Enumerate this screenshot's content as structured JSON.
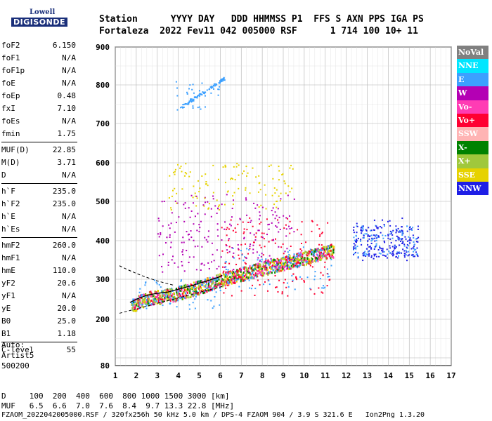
{
  "logo": {
    "line1": "Lowell",
    "line2": "DIGISONDE"
  },
  "header": {
    "row1": "Station      YYYY DAY   DDD HHMMSS P1  FFS S AXN PPS IGA PS",
    "row2": "Fortaleza  2022 Fev11 042 005000 RSF      1 714 100 10+ 11"
  },
  "params": {
    "group1": [
      {
        "k": "foF2",
        "v": "6.150"
      },
      {
        "k": "foF1",
        "v": "N/A"
      },
      {
        "k": "foF1p",
        "v": "N/A"
      },
      {
        "k": "foE",
        "v": "N/A"
      },
      {
        "k": "foEp",
        "v": "0.48"
      },
      {
        "k": "fxI",
        "v": "7.10"
      },
      {
        "k": "foEs",
        "v": "N/A"
      },
      {
        "k": "fmin",
        "v": "1.75"
      }
    ],
    "group2": [
      {
        "k": "MUF(D)",
        "v": "22.85"
      },
      {
        "k": "M(D)",
        "v": "3.71"
      },
      {
        "k": "D",
        "v": "N/A"
      }
    ],
    "group3": [
      {
        "k": "h`F",
        "v": "235.0"
      },
      {
        "k": "h`F2",
        "v": "235.0"
      },
      {
        "k": "h`E",
        "v": "N/A"
      },
      {
        "k": "h`Es",
        "v": "N/A"
      }
    ],
    "group4": [
      {
        "k": "hmF2",
        "v": "260.0"
      },
      {
        "k": "hmF1",
        "v": "N/A"
      },
      {
        "k": "hmE",
        "v": "110.0"
      },
      {
        "k": "yF2",
        "v": "20.6"
      },
      {
        "k": "yF1",
        "v": "N/A"
      },
      {
        "k": "yE",
        "v": "20.0"
      },
      {
        "k": "B0",
        "v": "25.0"
      },
      {
        "k": "B1",
        "v": "1.18"
      }
    ],
    "group5": [
      {
        "k": "C-level",
        "v": "55"
      }
    ]
  },
  "auto": {
    "l1": "Auto:",
    "l2": "Artist5",
    "l3": "500200"
  },
  "legend": [
    {
      "label": "NoVal",
      "color": "#808080"
    },
    {
      "label": "NNE",
      "color": "#00e6ff"
    },
    {
      "label": "E",
      "color": "#3ca0ff"
    },
    {
      "label": "W",
      "color": "#b400b4"
    },
    {
      "label": "Vo-",
      "color": "#ff3cb4"
    },
    {
      "label": "Vo+",
      "color": "#ff0032"
    },
    {
      "label": "SSW",
      "color": "#ffb4b4"
    },
    {
      "label": "X-",
      "color": "#008200"
    },
    {
      "label": "X+",
      "color": "#a0c83c"
    },
    {
      "label": "SSE",
      "color": "#e6d200"
    },
    {
      "label": "NNW",
      "color": "#1e1ee6"
    }
  ],
  "footer": {
    "row1": "D     100  200  400  600  800 1000 1500 3000 [km]",
    "row2": "MUF   6.5  6.6  7.0  7.6  8.4  9.7 13.3 22.8 [MHz]",
    "row3": "FZAOM_2022042005000.RSF / 320fx256h 50 kHz 5.0 km / DPS-4 FZAOM 904 / 3.9 S 321.6 E   Ion2Png 1.3.20"
  },
  "chart_data": {
    "type": "scatter",
    "xlim": [
      1,
      17
    ],
    "ylim": [
      80,
      900
    ],
    "x_ticks": [
      "1",
      "2",
      "3",
      "4",
      "5",
      "6",
      "7",
      "8",
      "9",
      "10",
      "11",
      "12",
      "13",
      "14",
      "15",
      "16",
      "17"
    ],
    "y_ticks": [
      "80",
      "200",
      "300",
      "400",
      "500",
      "600",
      "700",
      "800",
      "900"
    ],
    "y_tick_values": [
      80,
      200,
      300,
      400,
      500,
      600,
      700,
      800,
      900
    ],
    "grid": true,
    "trace": {
      "x": [
        1.7,
        2.0,
        2.5,
        3.0,
        3.5,
        4.0,
        4.5,
        5.0,
        5.5,
        5.9,
        6.1
      ],
      "y": [
        232,
        240,
        250,
        255,
        258,
        265,
        272,
        280,
        288,
        295,
        300
      ]
    },
    "clusters": [
      {
        "series": "E",
        "x": [
          1.9,
          6.1
        ],
        "y": [
          225,
          300
        ]
      },
      {
        "series": "Vo+",
        "x": [
          6.0,
          11.2
        ],
        "y": [
          260,
          460
        ]
      },
      {
        "series": "E",
        "x": [
          6.2,
          11.3
        ],
        "y": [
          275,
          385
        ]
      },
      {
        "series": "W",
        "x": [
          3.0,
          9.5
        ],
        "y": [
          320,
          520
        ]
      },
      {
        "series": "NNW",
        "x": [
          12.3,
          15.0
        ],
        "y": [
          350,
          460
        ]
      },
      {
        "series": "SSE",
        "x": [
          3.5,
          9.5
        ],
        "y": [
          480,
          600
        ]
      },
      {
        "series": "E",
        "x": [
          3.8,
          6.0
        ],
        "y": [
          735,
          810
        ]
      }
    ]
  }
}
